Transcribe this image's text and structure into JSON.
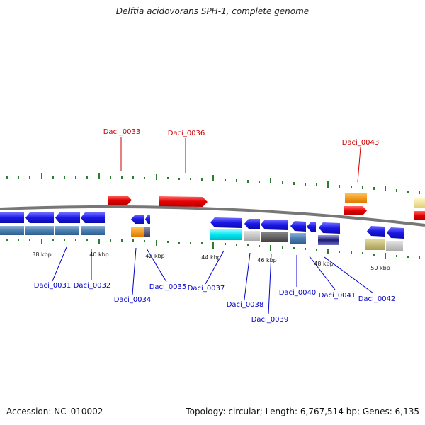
{
  "title": "Delftia acidovorans SPH-1, complete genome",
  "footer": {
    "accession": "Accession: NC_010002",
    "topology": "Topology: circular; Length: 6,767,514 bp; Genes: 6,135"
  },
  "colors": {
    "forward_label": "#cc0000",
    "reverse_label": "#0000cc",
    "tick": "#2e7d32",
    "backbone": "#777777"
  },
  "scale_labels": [
    "38 kbp",
    "40 kbp",
    "42 kbp",
    "44 kbp",
    "46 kbp",
    "48 kbp",
    "50 kbp"
  ],
  "upper_gene_labels": [
    "Daci_0033",
    "Daci_0036",
    "Daci_0043"
  ],
  "lower_gene_labels": [
    "Daci_0031",
    "Daci_0032",
    "Daci_0034",
    "Daci_0035",
    "Daci_0037",
    "Daci_0038",
    "Daci_0039",
    "Daci_0040",
    "Daci_0041",
    "Daci_0042"
  ]
}
